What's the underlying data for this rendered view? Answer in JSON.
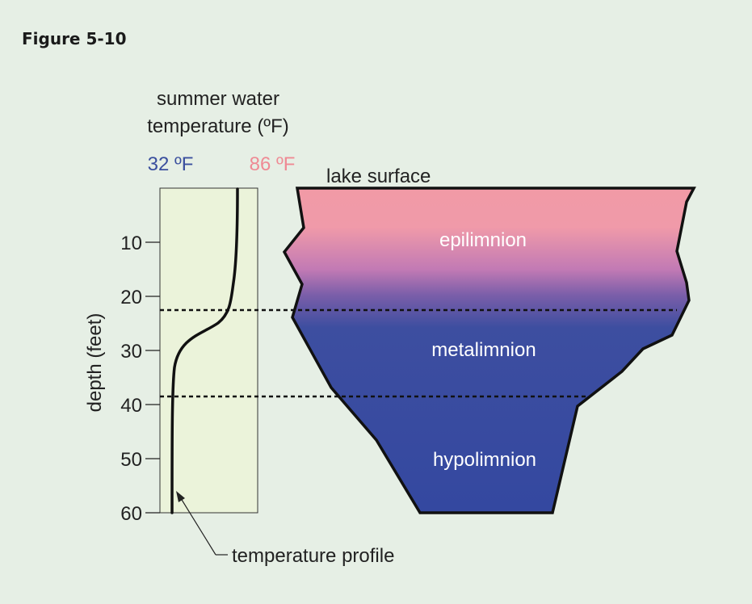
{
  "figure_label": "Figure 5-10",
  "chart_title_line1": "summer water",
  "chart_title_line2": "temperature (ºF)",
  "x_min_label": "32 ºF",
  "x_max_label": "86 ºF",
  "y_axis_label": "depth (feet)",
  "y_ticks": [
    "10",
    "20",
    "30",
    "40",
    "50",
    "60"
  ],
  "profile_label": "temperature profile",
  "lake_surface_label": "lake surface",
  "layers": {
    "epilimnion": "epilimnion",
    "metalimnion": "metalimnion",
    "hypolimnion": "hypolimnion"
  },
  "colors": {
    "background": "#e6efe5",
    "chart_fill": "#ebf3da",
    "cold_label": "#3a4f9e",
    "warm_label": "#ef8a94",
    "surface_water": "#f19aa6",
    "mid_water": "#b27db6",
    "deep_water": "#3448a0"
  }
}
